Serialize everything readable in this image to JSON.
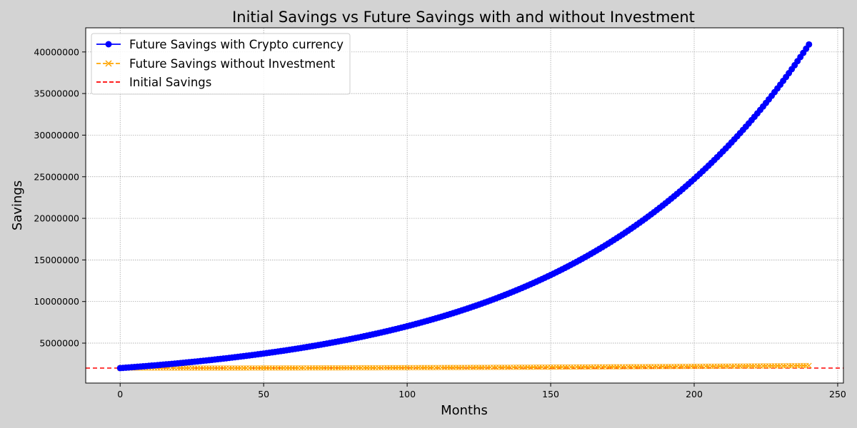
{
  "chart_data": {
    "type": "line",
    "title": "Initial Savings vs Future Savings with and without Investment",
    "xlabel": "Months",
    "ylabel": "Savings",
    "xlim": [
      -12,
      252
    ],
    "ylim": [
      200000,
      42900000
    ],
    "xticks": [
      0,
      50,
      100,
      150,
      200,
      250
    ],
    "yticks": [
      5000000,
      10000000,
      15000000,
      20000000,
      25000000,
      30000000,
      35000000,
      40000000
    ],
    "ytick_labels": [
      "5000000",
      "10000000",
      "15000000",
      "20000000",
      "25000000",
      "30000000",
      "35000000",
      "40000000"
    ],
    "xtick_labels": [
      "0",
      "50",
      "100",
      "150",
      "200",
      "250"
    ],
    "grid": true,
    "legend_position": "upper-left",
    "series": [
      {
        "name": "Future Savings with Crypto currency",
        "style": "solid-line-circle-markers",
        "color": "#0000ff",
        "x_start": 0,
        "x_end": 240,
        "x_step": 1,
        "growth": "exponential",
        "values_at": {
          "0": 2000000,
          "50": 3870000,
          "100": 7100000,
          "150": 13100000,
          "200": 24600000,
          "240": 40900000
        }
      },
      {
        "name": "Future Savings without Investment",
        "style": "dashed-line-x-markers",
        "color": "#ffa500",
        "x_start": 0,
        "x_end": 240,
        "x_step": 1,
        "values_at": {
          "0": 2000000,
          "240": 2300000
        }
      },
      {
        "name": "Initial Savings",
        "style": "horizontal-dashed-line",
        "color": "#ff0000",
        "value": 2000000
      }
    ]
  }
}
